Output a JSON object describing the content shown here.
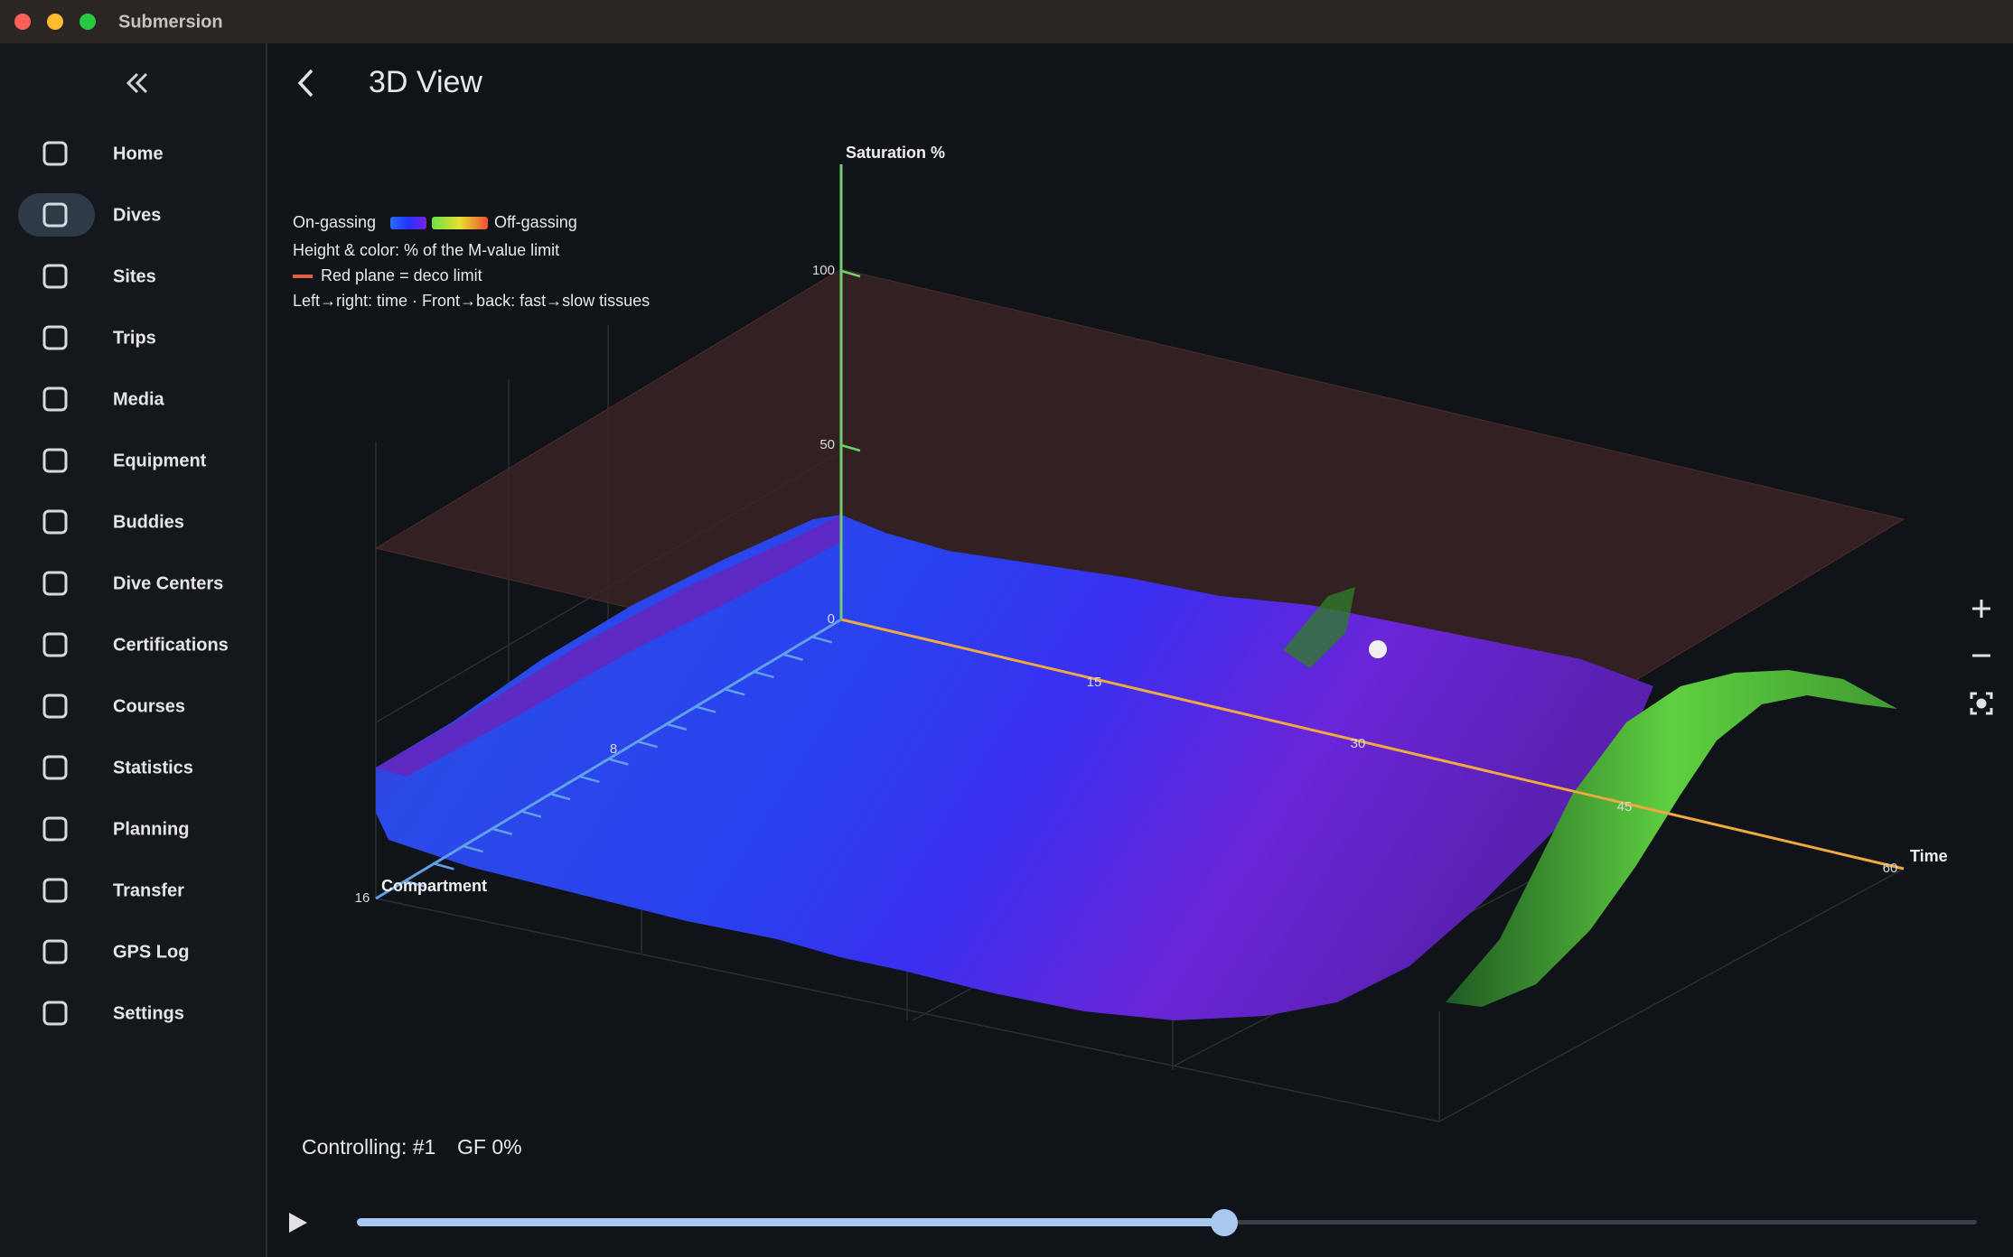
{
  "window": {
    "title": "Submersion"
  },
  "nav": {
    "items": [
      "Home",
      "Dives",
      "Sites",
      "Trips",
      "Media",
      "Equipment",
      "Buddies",
      "Dive Centers",
      "Certifications",
      "Courses",
      "Statistics",
      "Planning",
      "Transfer",
      "GPS Log",
      "Settings"
    ],
    "selected_index": 1
  },
  "header": {
    "title": "3D View"
  },
  "legend": {
    "on_gassing": "On-gassing",
    "off_gassing": "Off-gassing",
    "height_note": "Height & color: % of the M-value limit",
    "plane_note": "Red plane = deco limit",
    "direction_note": "Left→right: time · Front→back: fast→slow tissues"
  },
  "axes": {
    "saturation": {
      "label": "Saturation %",
      "ticks": [
        "100",
        "50",
        "0"
      ]
    },
    "time": {
      "label": "Time",
      "ticks": [
        "15",
        "30",
        "45",
        "60"
      ]
    },
    "compartment": {
      "label": "Compartment",
      "ticks": [
        "8",
        "16"
      ]
    }
  },
  "status": {
    "controlling": "Controlling: #1",
    "gf": "GF 0%"
  }
}
